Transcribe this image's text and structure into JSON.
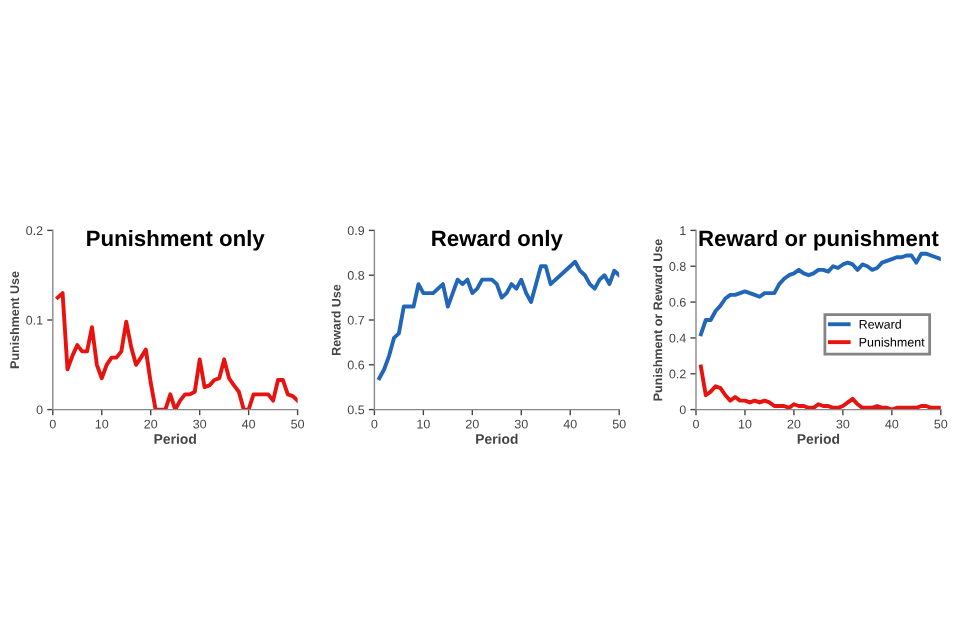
{
  "chart_data": [
    {
      "type": "line",
      "title": "Punishment only",
      "xlabel": "Period",
      "ylabel": "Punishment Use",
      "xlim": [
        0,
        50
      ],
      "xticks": [
        0,
        10,
        20,
        30,
        40,
        50
      ],
      "ylim": [
        0,
        0.2
      ],
      "yticks": [
        0,
        0.1,
        0.2
      ],
      "grid": false,
      "legend": false,
      "x": [
        1,
        2,
        3,
        4,
        5,
        6,
        7,
        8,
        9,
        10,
        11,
        12,
        13,
        14,
        15,
        16,
        17,
        18,
        19,
        20,
        21,
        22,
        23,
        24,
        25,
        26,
        27,
        28,
        29,
        30,
        31,
        32,
        33,
        34,
        35,
        36,
        37,
        38,
        39,
        40,
        41,
        42,
        43,
        44,
        45,
        46,
        47,
        48,
        49,
        50
      ],
      "series": [
        {
          "color": "#e8130f",
          "values": [
            0.125,
            0.13,
            0.045,
            0.06,
            0.072,
            0.065,
            0.065,
            0.092,
            0.05,
            0.035,
            0.05,
            0.058,
            0.058,
            0.065,
            0.098,
            0.07,
            0.05,
            0.058,
            0.067,
            0.03,
            0.0,
            0.0,
            0.0,
            0.017,
            0.0,
            0.01,
            0.017,
            0.017,
            0.02,
            0.056,
            0.025,
            0.027,
            0.033,
            0.035,
            0.056,
            0.035,
            0.027,
            0.02,
            0.0,
            0.0,
            0.017,
            0.017,
            0.017,
            0.017,
            0.01,
            0.033,
            0.033,
            0.017,
            0.015,
            0.01
          ]
        }
      ]
    },
    {
      "type": "line",
      "title": "Reward only",
      "xlabel": "Period",
      "ylabel": "Reward Use",
      "xlim": [
        0,
        50
      ],
      "xticks": [
        0,
        10,
        20,
        30,
        40,
        50
      ],
      "ylim": [
        0.5,
        0.9
      ],
      "yticks": [
        0.5,
        0.6,
        0.7,
        0.8,
        0.9
      ],
      "grid": false,
      "legend": false,
      "x": [
        1,
        2,
        3,
        4,
        5,
        6,
        7,
        8,
        9,
        10,
        11,
        12,
        13,
        14,
        15,
        16,
        17,
        18,
        19,
        20,
        21,
        22,
        23,
        24,
        25,
        26,
        27,
        28,
        29,
        30,
        31,
        32,
        33,
        34,
        35,
        36,
        37,
        38,
        39,
        40,
        41,
        42,
        43,
        44,
        45,
        46,
        47,
        48,
        49,
        50
      ],
      "series": [
        {
          "color": "#2266b8",
          "values": [
            0.57,
            0.59,
            0.62,
            0.66,
            0.67,
            0.73,
            0.73,
            0.73,
            0.78,
            0.76,
            0.76,
            0.76,
            0.77,
            0.78,
            0.73,
            0.76,
            0.79,
            0.78,
            0.79,
            0.76,
            0.77,
            0.79,
            0.79,
            0.79,
            0.78,
            0.75,
            0.76,
            0.78,
            0.77,
            0.79,
            0.76,
            0.74,
            0.78,
            0.82,
            0.82,
            0.78,
            0.79,
            0.8,
            0.81,
            0.82,
            0.83,
            0.81,
            0.8,
            0.78,
            0.77,
            0.79,
            0.8,
            0.78,
            0.81,
            0.8
          ]
        }
      ]
    },
    {
      "type": "line",
      "title": "Reward or punishment",
      "xlabel": "Period",
      "ylabel": "Punishment or Reward Use",
      "xlim": [
        0,
        50
      ],
      "xticks": [
        0,
        10,
        20,
        30,
        40,
        50
      ],
      "ylim": [
        0,
        1
      ],
      "yticks": [
        0,
        0.2,
        0.4,
        0.6,
        0.8,
        1
      ],
      "grid": false,
      "legend": "right",
      "x": [
        1,
        2,
        3,
        4,
        5,
        6,
        7,
        8,
        9,
        10,
        11,
        12,
        13,
        14,
        15,
        16,
        17,
        18,
        19,
        20,
        21,
        22,
        23,
        24,
        25,
        26,
        27,
        28,
        29,
        30,
        31,
        32,
        33,
        34,
        35,
        36,
        37,
        38,
        39,
        40,
        41,
        42,
        43,
        44,
        45,
        46,
        47,
        48,
        49,
        50
      ],
      "series": [
        {
          "name": "Reward",
          "color": "#2266b8",
          "values": [
            0.42,
            0.5,
            0.5,
            0.55,
            0.58,
            0.62,
            0.64,
            0.64,
            0.65,
            0.66,
            0.65,
            0.64,
            0.63,
            0.65,
            0.65,
            0.65,
            0.7,
            0.73,
            0.75,
            0.76,
            0.78,
            0.76,
            0.75,
            0.76,
            0.78,
            0.78,
            0.77,
            0.8,
            0.79,
            0.81,
            0.82,
            0.81,
            0.78,
            0.81,
            0.8,
            0.78,
            0.79,
            0.82,
            0.83,
            0.84,
            0.85,
            0.85,
            0.86,
            0.86,
            0.82,
            0.87,
            0.87,
            0.86,
            0.85,
            0.84
          ]
        },
        {
          "name": "Punishment",
          "color": "#e8130f",
          "values": [
            0.24,
            0.08,
            0.1,
            0.13,
            0.12,
            0.08,
            0.05,
            0.07,
            0.05,
            0.05,
            0.04,
            0.05,
            0.04,
            0.05,
            0.04,
            0.02,
            0.02,
            0.02,
            0.01,
            0.03,
            0.02,
            0.02,
            0.01,
            0.01,
            0.03,
            0.02,
            0.02,
            0.01,
            0.01,
            0.02,
            0.04,
            0.06,
            0.03,
            0.01,
            0.01,
            0.01,
            0.02,
            0.01,
            0.01,
            0.0,
            0.01,
            0.01,
            0.01,
            0.01,
            0.01,
            0.02,
            0.02,
            0.01,
            0.01,
            0.01
          ]
        }
      ]
    }
  ]
}
